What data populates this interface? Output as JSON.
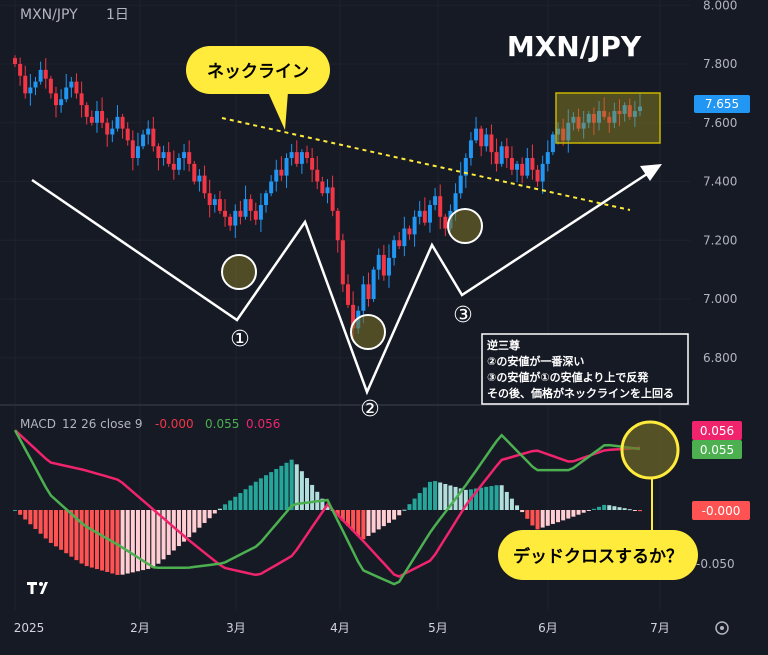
{
  "header": {
    "symbol": "MXN/JPY",
    "interval": "1日"
  },
  "watermark_title": "MXN/JPY",
  "colors": {
    "up": "#2196f3",
    "down": "#f23645",
    "macd": "#4caf50",
    "signal": "#f0246c",
    "hist_pos_strong": "#26a69a",
    "hist_pos_weak": "#b2dfdb",
    "hist_neg_strong": "#ff5252",
    "hist_neg_weak": "#ffcdd2",
    "annotation": "#ffeb3b",
    "background": "#161a25"
  },
  "annotations": {
    "neckline_label": "ネックライン",
    "trough_labels": [
      "①",
      "②",
      "③"
    ],
    "note_lines": [
      "逆三尊",
      "②の安値が一番深い",
      "③の安値が①の安値より上で反発",
      "その後、価格がネックラインを上回る"
    ],
    "macd_callout": "デッドクロスするか？"
  },
  "chart_data": [
    {
      "type": "candlestick",
      "title": "",
      "price_axis_ticks": [
        "8.000",
        "7.800",
        "7.600",
        "7.400",
        "7.200",
        "7.000",
        "6.800"
      ],
      "ylim": [
        6.7,
        8.0
      ],
      "current_price": "7.655",
      "x_tick_labels": [
        "2025",
        "2月",
        "3月",
        "4月",
        "5月",
        "6月",
        "7月"
      ],
      "closes": [
        7.8,
        7.76,
        7.7,
        7.72,
        7.74,
        7.78,
        7.75,
        7.7,
        7.66,
        7.68,
        7.72,
        7.74,
        7.7,
        7.66,
        7.62,
        7.6,
        7.64,
        7.6,
        7.56,
        7.58,
        7.62,
        7.58,
        7.54,
        7.48,
        7.52,
        7.56,
        7.58,
        7.52,
        7.48,
        7.5,
        7.46,
        7.44,
        7.48,
        7.5,
        7.46,
        7.4,
        7.42,
        7.36,
        7.32,
        7.34,
        7.3,
        7.28,
        7.25,
        7.3,
        7.28,
        7.34,
        7.3,
        7.27,
        7.32,
        7.36,
        7.4,
        7.44,
        7.42,
        7.48,
        7.5,
        7.46,
        7.5,
        7.48,
        7.44,
        7.4,
        7.36,
        7.38,
        7.3,
        7.2,
        7.05,
        6.98,
        6.9,
        6.96,
        7.05,
        7.0,
        7.1,
        7.15,
        7.08,
        7.14,
        7.2,
        7.18,
        7.24,
        7.22,
        7.28,
        7.3,
        7.26,
        7.32,
        7.35,
        7.28,
        7.24,
        7.3,
        7.36,
        7.42,
        7.48,
        7.54,
        7.58,
        7.52,
        7.56,
        7.5,
        7.46,
        7.52,
        7.48,
        7.44,
        7.46,
        7.42,
        7.48,
        7.44,
        7.4,
        7.46,
        7.5,
        7.56,
        7.58,
        7.54,
        7.6,
        7.62,
        7.58,
        7.6,
        7.63,
        7.6,
        7.64,
        7.62,
        7.6,
        7.64,
        7.63,
        7.66,
        7.62,
        7.64,
        7.655
      ]
    },
    {
      "type": "line",
      "title": "",
      "legend": {
        "name": "MACD",
        "params": "12 26 close 9",
        "histogram": "-0.000",
        "macd": "0.055",
        "signal": "0.056"
      },
      "axis_ticks": [
        "-0.050"
      ],
      "ylim": [
        -0.085,
        0.09
      ],
      "last_labels": {
        "signal": "0.056",
        "macd": "0.055",
        "histogram": "-0.000"
      },
      "series": [
        {
          "name": "MACD",
          "values": [
            0.072,
            0.014,
            -0.014,
            -0.032,
            -0.052,
            -0.052,
            -0.048,
            -0.032,
            0.005,
            0.009,
            -0.054,
            -0.068,
            -0.018,
            0.023,
            0.068,
            0.036,
            0.036,
            0.059,
            0.055
          ]
        },
        {
          "name": "signal",
          "values": [
            0.072,
            0.043,
            0.036,
            0.027,
            0.0,
            -0.027,
            -0.052,
            -0.059,
            -0.041,
            0.005,
            -0.027,
            -0.061,
            -0.045,
            0.005,
            0.045,
            0.054,
            0.043,
            0.054,
            0.056
          ]
        }
      ]
    }
  ]
}
